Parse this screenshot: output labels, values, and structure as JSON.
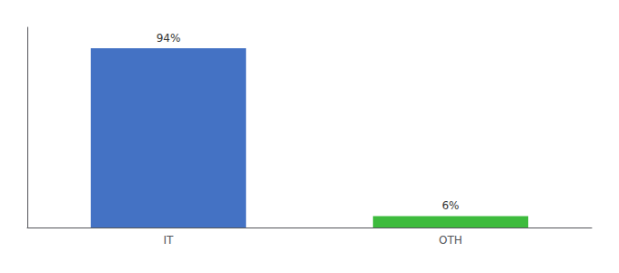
{
  "chart_data": {
    "type": "bar",
    "categories": [
      "IT",
      "OTH"
    ],
    "values": [
      94,
      6
    ],
    "value_labels": [
      "94%",
      "6%"
    ],
    "colors": [
      "#4472c4",
      "#3dbb3d"
    ],
    "ylim": [
      0,
      105
    ],
    "grid": false,
    "data_labels": true,
    "tick_labels": "x"
  }
}
